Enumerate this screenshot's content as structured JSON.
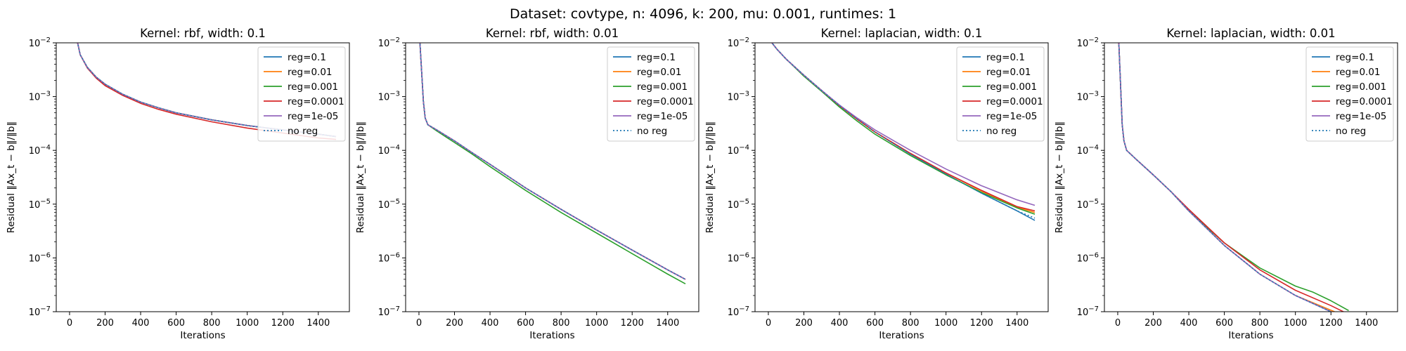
{
  "figure": {
    "suptitle": "Dataset: covtype, n: 4096, k: 200, mu: 0.001, runtimes: 1"
  },
  "colors": {
    "reg=0.1": "#1f77b4",
    "reg=0.01": "#ff7f0e",
    "reg=0.001": "#2ca02c",
    "reg=0.0001": "#d62728",
    "reg=1e-05": "#9467bd",
    "no reg": "#1f77b4"
  },
  "chart_data": [
    {
      "type": "line",
      "title": "Kernel: rbf, width: 0.1",
      "xlabel": "Iterations",
      "ylabel": "Residual ‖Ax_t − b‖/‖b‖",
      "xlim": [
        -75,
        1575
      ],
      "ylim": [
        1e-07,
        0.01
      ],
      "yscale": "log",
      "xticks": [
        0,
        200,
        400,
        600,
        800,
        1000,
        1200,
        1400
      ],
      "yticks": [
        "10^-7",
        "10^-6",
        "10^-5",
        "10^-4",
        "10^-3",
        "10^-2"
      ],
      "legend": "top-right",
      "series": [
        {
          "name": "reg=0.1",
          "x": [
            20,
            40,
            60,
            100,
            150,
            200,
            300,
            400,
            500,
            600,
            800,
            1000,
            1200,
            1400,
            1500
          ],
          "y": [
            0.03,
            0.012,
            0.006,
            0.0035,
            0.0023,
            0.0017,
            0.0011,
            0.00079,
            0.00062,
            0.0005,
            0.00037,
            0.00029,
            0.00024,
            0.0002,
            0.00018
          ]
        },
        {
          "name": "reg=0.01",
          "x": [
            20,
            40,
            60,
            100,
            150,
            200,
            300,
            400,
            500,
            600,
            800,
            1000,
            1200,
            1400,
            1500
          ],
          "y": [
            0.03,
            0.012,
            0.006,
            0.0035,
            0.0023,
            0.0017,
            0.0011,
            0.00079,
            0.00062,
            0.0005,
            0.00037,
            0.00029,
            0.00024,
            0.0002,
            0.00018
          ]
        },
        {
          "name": "reg=0.001",
          "x": [
            20,
            40,
            60,
            100,
            150,
            200,
            300,
            400,
            500,
            600,
            800,
            1000,
            1200,
            1400,
            1500
          ],
          "y": [
            0.03,
            0.012,
            0.006,
            0.0035,
            0.0023,
            0.0017,
            0.0011,
            0.00079,
            0.00062,
            0.0005,
            0.00037,
            0.00029,
            0.00024,
            0.0002,
            0.00018
          ]
        },
        {
          "name": "reg=0.0001",
          "x": [
            20,
            40,
            60,
            100,
            150,
            200,
            300,
            400,
            500,
            600,
            800,
            1000,
            1200,
            1400,
            1500
          ],
          "y": [
            0.03,
            0.012,
            0.006,
            0.0034,
            0.0022,
            0.0016,
            0.00105,
            0.00075,
            0.00058,
            0.00047,
            0.00034,
            0.00026,
            0.00021,
            0.00017,
            0.00016
          ]
        },
        {
          "name": "reg=1e-05",
          "x": [
            20,
            40,
            60,
            100,
            150,
            200,
            300,
            400,
            500,
            600,
            800,
            1000,
            1200,
            1400,
            1500
          ],
          "y": [
            0.03,
            0.012,
            0.006,
            0.0035,
            0.0023,
            0.0017,
            0.0011,
            0.00079,
            0.00062,
            0.0005,
            0.00037,
            0.00029,
            0.00024,
            0.0002,
            0.00018
          ]
        },
        {
          "name": "no reg",
          "x": [
            20,
            40,
            60,
            100,
            150,
            200,
            300,
            400,
            500,
            600,
            800,
            1000,
            1200,
            1400,
            1500
          ],
          "y": [
            0.03,
            0.012,
            0.006,
            0.0035,
            0.0023,
            0.0017,
            0.0011,
            0.00079,
            0.00062,
            0.0005,
            0.00037,
            0.00029,
            0.00024,
            0.0002,
            0.00018
          ]
        }
      ]
    },
    {
      "type": "line",
      "title": "Kernel: rbf, width: 0.01",
      "xlabel": "Iterations",
      "ylabel": "Residual ‖Ax_t − b‖/‖b‖",
      "xlim": [
        -75,
        1575
      ],
      "ylim": [
        1e-07,
        0.01
      ],
      "yscale": "log",
      "xticks": [
        0,
        200,
        400,
        600,
        800,
        1000,
        1200,
        1400
      ],
      "yticks": [
        "10^-7",
        "10^-6",
        "10^-5",
        "10^-4",
        "10^-3",
        "10^-2"
      ],
      "legend": "top-right",
      "series": [
        {
          "name": "reg=0.1",
          "x": [
            0,
            15,
            25,
            35,
            50,
            100,
            200,
            300,
            400,
            600,
            800,
            1000,
            1200,
            1400,
            1500
          ],
          "y": [
            0.02,
            0.003,
            0.0008,
            0.0004,
            0.0003,
            0.00024,
            0.00015,
            9e-05,
            5.5e-05,
            2e-05,
            8e-06,
            3.3e-06,
            1.4e-06,
            6e-07,
            4e-07
          ]
        },
        {
          "name": "reg=0.01",
          "x": [
            0,
            15,
            25,
            35,
            50,
            100,
            200,
            300,
            400,
            600,
            800,
            1000,
            1200,
            1400,
            1500
          ],
          "y": [
            0.02,
            0.003,
            0.0008,
            0.0004,
            0.0003,
            0.00024,
            0.00015,
            9e-05,
            5.5e-05,
            2e-05,
            8e-06,
            3.3e-06,
            1.4e-06,
            6e-07,
            4e-07
          ]
        },
        {
          "name": "reg=0.001",
          "x": [
            0,
            15,
            25,
            35,
            50,
            100,
            200,
            300,
            400,
            600,
            800,
            1000,
            1200,
            1400,
            1500
          ],
          "y": [
            0.02,
            0.003,
            0.0008,
            0.0004,
            0.0003,
            0.00023,
            0.00014,
            8.5e-05,
            5e-05,
            1.8e-05,
            7e-06,
            2.9e-06,
            1.2e-06,
            5e-07,
            3.3e-07
          ]
        },
        {
          "name": "reg=0.0001",
          "x": [
            0,
            15,
            25,
            35,
            50,
            100,
            200,
            300,
            400,
            600,
            800,
            1000,
            1200,
            1400,
            1500
          ],
          "y": [
            0.02,
            0.003,
            0.0008,
            0.0004,
            0.0003,
            0.00024,
            0.00015,
            9e-05,
            5.5e-05,
            2e-05,
            8e-06,
            3.3e-06,
            1.4e-06,
            6e-07,
            4e-07
          ]
        },
        {
          "name": "reg=1e-05",
          "x": [
            0,
            15,
            25,
            35,
            50,
            100,
            200,
            300,
            400,
            600,
            800,
            1000,
            1200,
            1400,
            1500
          ],
          "y": [
            0.02,
            0.003,
            0.0008,
            0.0004,
            0.0003,
            0.00024,
            0.00015,
            9e-05,
            5.5e-05,
            2e-05,
            8e-06,
            3.3e-06,
            1.4e-06,
            6e-07,
            4e-07
          ]
        },
        {
          "name": "no reg",
          "x": [
            0,
            15,
            25,
            35,
            50,
            100,
            200,
            300,
            400,
            600,
            800,
            1000,
            1200,
            1400,
            1500
          ],
          "y": [
            0.02,
            0.003,
            0.0008,
            0.0004,
            0.0003,
            0.00024,
            0.00015,
            9e-05,
            5.5e-05,
            2e-05,
            8e-06,
            3.3e-06,
            1.4e-06,
            6e-07,
            4e-07
          ]
        }
      ]
    },
    {
      "type": "line",
      "title": "Kernel: laplacian, width: 0.1",
      "xlabel": "Iterations",
      "ylabel": "Residual ‖Ax_t − b‖/‖b‖",
      "xlim": [
        -75,
        1575
      ],
      "ylim": [
        1e-07,
        0.01
      ],
      "yscale": "log",
      "xticks": [
        0,
        200,
        400,
        600,
        800,
        1000,
        1200,
        1400
      ],
      "yticks": [
        "10^-7",
        "10^-6",
        "10^-5",
        "10^-4",
        "10^-3",
        "10^-2"
      ],
      "legend": "top-right",
      "series": [
        {
          "name": "reg=0.1",
          "x": [
            0,
            20,
            50,
            100,
            200,
            300,
            400,
            500,
            600,
            800,
            1000,
            1200,
            1400,
            1500
          ],
          "y": [
            0.012,
            0.01,
            0.0075,
            0.005,
            0.0025,
            0.0013,
            0.00068,
            0.00038,
            0.00022,
            8.5e-05,
            3.6e-05,
            1.6e-05,
            7.5e-06,
            5e-06
          ]
        },
        {
          "name": "reg=0.01",
          "x": [
            0,
            20,
            50,
            100,
            200,
            300,
            400,
            500,
            600,
            800,
            1000,
            1200,
            1400,
            1500
          ],
          "y": [
            0.012,
            0.01,
            0.0075,
            0.005,
            0.0025,
            0.0013,
            0.00068,
            0.00038,
            0.00022,
            8.8e-05,
            3.8e-05,
            1.75e-05,
            8.8e-06,
            7e-06
          ]
        },
        {
          "name": "reg=0.001",
          "x": [
            0,
            20,
            50,
            100,
            200,
            300,
            400,
            500,
            600,
            800,
            1000,
            1200,
            1400,
            1500
          ],
          "y": [
            0.012,
            0.01,
            0.0075,
            0.005,
            0.0024,
            0.00125,
            0.00064,
            0.00035,
            0.0002,
            8e-05,
            3.5e-05,
            1.65e-05,
            8.5e-06,
            6.5e-06
          ]
        },
        {
          "name": "reg=0.0001",
          "x": [
            0,
            20,
            50,
            100,
            200,
            300,
            400,
            500,
            600,
            800,
            1000,
            1200,
            1400,
            1500
          ],
          "y": [
            0.012,
            0.01,
            0.0075,
            0.005,
            0.0025,
            0.0013,
            0.00068,
            0.00038,
            0.00022,
            8.8e-05,
            3.8e-05,
            1.8e-05,
            9e-06,
            7.5e-06
          ]
        },
        {
          "name": "reg=1e-05",
          "x": [
            0,
            20,
            50,
            100,
            200,
            300,
            400,
            500,
            600,
            800,
            1000,
            1200,
            1400,
            1500
          ],
          "y": [
            0.012,
            0.01,
            0.0075,
            0.005,
            0.0025,
            0.0013,
            0.0007,
            0.0004,
            0.00024,
            0.0001,
            4.5e-05,
            2.2e-05,
            1.2e-05,
            9.5e-06
          ]
        },
        {
          "name": "no reg",
          "x": [
            0,
            20,
            50,
            100,
            200,
            300,
            400,
            500,
            600,
            800,
            1000,
            1200,
            1400,
            1500
          ],
          "y": [
            0.012,
            0.01,
            0.0075,
            0.005,
            0.0025,
            0.0013,
            0.00068,
            0.00038,
            0.00022,
            8.5e-05,
            3.6e-05,
            1.6e-05,
            7.5e-06,
            5.5e-06
          ]
        }
      ]
    },
    {
      "type": "line",
      "title": "Kernel: laplacian, width: 0.01",
      "xlabel": "Iterations",
      "ylabel": "Residual ‖Ax_t − b‖/‖b‖",
      "xlim": [
        -75,
        1575
      ],
      "ylim": [
        1e-07,
        0.01
      ],
      "yscale": "log",
      "xticks": [
        0,
        200,
        400,
        600,
        800,
        1000,
        1200,
        1400
      ],
      "yticks": [
        "10^-7",
        "10^-6",
        "10^-5",
        "10^-4",
        "10^-3",
        "10^-2"
      ],
      "legend": "top-right",
      "series": [
        {
          "name": "reg=0.1",
          "x": [
            0,
            15,
            25,
            35,
            50,
            100,
            200,
            300,
            400,
            600,
            800,
            1000,
            1200
          ],
          "y": [
            0.03,
            0.002,
            0.0003,
            0.00015,
            0.0001,
            7e-05,
            3.5e-05,
            1.7e-05,
            7.5e-06,
            1.7e-06,
            5e-07,
            2e-07,
            1e-07
          ]
        },
        {
          "name": "reg=0.01",
          "x": [
            0,
            15,
            25,
            35,
            50,
            100,
            200,
            300,
            400,
            600,
            800,
            1000,
            1220
          ],
          "y": [
            0.03,
            0.002,
            0.0003,
            0.00015,
            0.0001,
            7e-05,
            3.5e-05,
            1.7e-05,
            7.5e-06,
            1.7e-06,
            5e-07,
            2e-07,
            1e-07
          ]
        },
        {
          "name": "reg=0.001",
          "x": [
            0,
            15,
            25,
            35,
            50,
            100,
            200,
            300,
            400,
            600,
            800,
            1000,
            1100,
            1200,
            1300
          ],
          "y": [
            0.03,
            0.002,
            0.0003,
            0.00015,
            0.0001,
            7e-05,
            3.5e-05,
            1.7e-05,
            7.5e-06,
            1.9e-06,
            6.5e-07,
            3e-07,
            2.3e-07,
            1.6e-07,
            1.05e-07
          ]
        },
        {
          "name": "reg=0.0001",
          "x": [
            0,
            15,
            25,
            35,
            50,
            100,
            200,
            300,
            400,
            600,
            800,
            1000,
            1200,
            1270
          ],
          "y": [
            0.03,
            0.002,
            0.0003,
            0.00015,
            0.0001,
            7e-05,
            3.5e-05,
            1.7e-05,
            8e-06,
            1.9e-06,
            6e-07,
            2.5e-07,
            1.3e-07,
            1e-07
          ]
        },
        {
          "name": "reg=1e-05",
          "x": [
            0,
            15,
            25,
            35,
            50,
            100,
            200,
            300,
            400,
            600,
            800,
            1000,
            1200
          ],
          "y": [
            0.03,
            0.002,
            0.0003,
            0.00015,
            0.0001,
            7e-05,
            3.5e-05,
            1.7e-05,
            7.5e-06,
            1.7e-06,
            5e-07,
            2e-07,
            1e-07
          ]
        },
        {
          "name": "no reg",
          "x": [
            0,
            15,
            25,
            35,
            50,
            100,
            200,
            300,
            400,
            600,
            800,
            1000,
            1200
          ],
          "y": [
            0.03,
            0.002,
            0.0003,
            0.00015,
            0.0001,
            7e-05,
            3.5e-05,
            1.7e-05,
            7.5e-06,
            1.7e-06,
            5e-07,
            2e-07,
            1e-07
          ]
        }
      ]
    }
  ]
}
